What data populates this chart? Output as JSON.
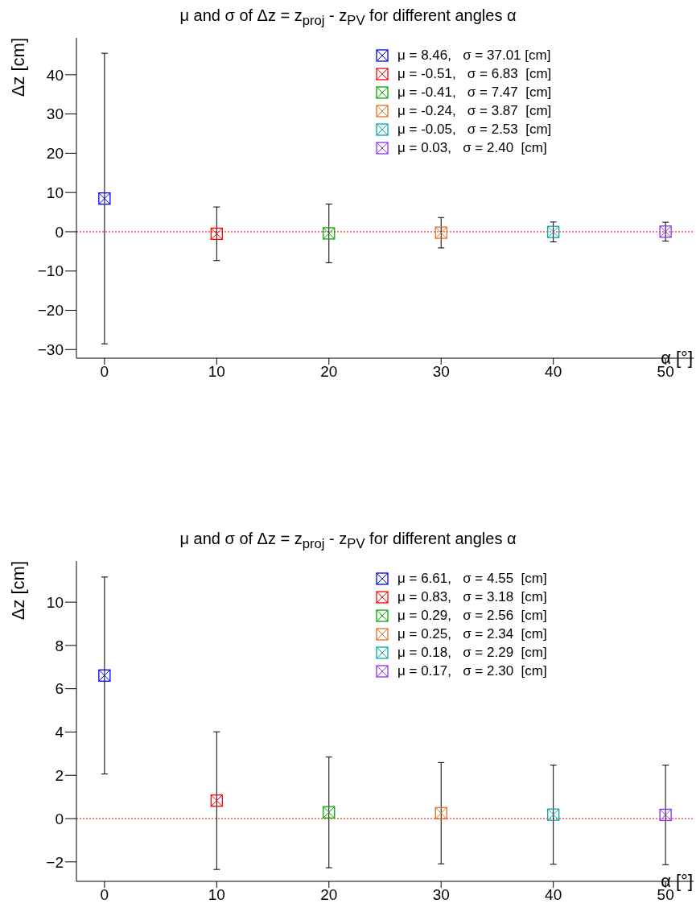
{
  "chart_data": [
    {
      "type": "scatter",
      "title": "μ and σ of Δz = z$_{proj}$ - z$_{PV}$ for different angles  α",
      "xlabel": "α [°]",
      "ylabel": "Δz [cm]",
      "xlim": [
        -2.5,
        52.5
      ],
      "xticks": [
        0,
        10,
        20,
        30,
        40,
        50
      ],
      "ylim": [
        -32.2,
        49.4
      ],
      "yticks": [
        -30,
        -20,
        -10,
        0,
        10,
        20,
        30,
        40
      ],
      "marker": "square",
      "legend": "top right",
      "grid": false,
      "ref_lines": [
        {
          "axis": "y",
          "value": 0,
          "color": "#ff0000",
          "line_style": "dotted"
        }
      ],
      "series": [
        {
          "name": "μ = 8.46,   σ = 37.01 [cm]",
          "color": "#0000ff",
          "x": [
            0
          ],
          "values": [
            8.46
          ],
          "errors": [
            37.01
          ]
        },
        {
          "name": "μ = -0.51,   σ = 6.83  [cm]",
          "color": "#ff0000",
          "x": [
            10
          ],
          "values": [
            -0.51
          ],
          "errors": [
            6.83
          ]
        },
        {
          "name": "μ = -0.41,   σ = 7.47  [cm]",
          "color": "#00aa00",
          "x": [
            20
          ],
          "values": [
            -0.41
          ],
          "errors": [
            7.47
          ]
        },
        {
          "name": "μ = -0.24,   σ = 3.87  [cm]",
          "color": "#e07020",
          "x": [
            30
          ],
          "values": [
            -0.24
          ],
          "errors": [
            3.87
          ]
        },
        {
          "name": "μ = -0.05,   σ = 2.53  [cm]",
          "color": "#00aaaa",
          "x": [
            40
          ],
          "values": [
            -0.05
          ],
          "errors": [
            2.53
          ]
        },
        {
          "name": "μ = 0.03,   σ = 2.40  [cm]",
          "color": "#8833ee",
          "x": [
            50
          ],
          "values": [
            0.03
          ],
          "errors": [
            2.4
          ]
        }
      ]
    },
    {
      "type": "scatter",
      "title": "μ and σ of Δz = z$_{proj}$ - z$_{PV}$ for different angles  α",
      "xlabel": "α [°]",
      "ylabel": "Δz [cm]",
      "xlim": [
        -2.5,
        52.5
      ],
      "xticks": [
        0,
        10,
        20,
        30,
        40,
        50
      ],
      "ylim": [
        -2.9,
        11.9
      ],
      "yticks": [
        -2,
        0,
        2,
        4,
        6,
        8,
        10
      ],
      "marker": "square",
      "legend": "top right",
      "grid": false,
      "ref_lines": [
        {
          "axis": "y",
          "value": 0,
          "color": "#ff0000",
          "line_style": "dotted"
        }
      ],
      "series": [
        {
          "name": "μ = 6.61,   σ = 4.55  [cm]",
          "color": "#0000ff",
          "x": [
            0
          ],
          "values": [
            6.61
          ],
          "errors": [
            4.55
          ]
        },
        {
          "name": "μ = 0.83,   σ = 3.18  [cm]",
          "color": "#ff0000",
          "x": [
            10
          ],
          "values": [
            0.83
          ],
          "errors": [
            3.18
          ]
        },
        {
          "name": "μ = 0.29,   σ = 2.56  [cm]",
          "color": "#00aa00",
          "x": [
            20
          ],
          "values": [
            0.29
          ],
          "errors": [
            2.56
          ]
        },
        {
          "name": "μ = 0.25,   σ = 2.34  [cm]",
          "color": "#e07020",
          "x": [
            30
          ],
          "values": [
            0.25
          ],
          "errors": [
            2.34
          ]
        },
        {
          "name": "μ = 0.18,   σ = 2.29  [cm]",
          "color": "#00aaaa",
          "x": [
            40
          ],
          "values": [
            0.18
          ],
          "errors": [
            2.29
          ]
        },
        {
          "name": "μ = 0.17,   σ = 2.30  [cm]",
          "color": "#8833ee",
          "x": [
            50
          ],
          "values": [
            0.17
          ],
          "errors": [
            2.3
          ]
        }
      ]
    }
  ]
}
